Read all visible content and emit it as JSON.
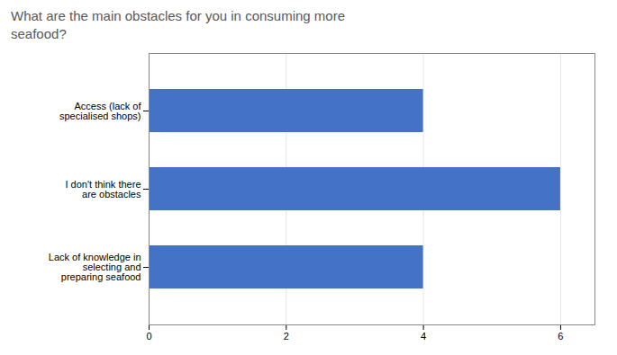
{
  "chart_data": {
    "type": "bar",
    "orientation": "horizontal",
    "title": "What are the main obstacles for you in consuming more\nseafood?",
    "categories": [
      "Lack of knowledge in\nselecting and\npreparing seafood",
      "I don't think there\nare obstacles",
      "Access (lack of\nspecialised shops)"
    ],
    "values": [
      4,
      6,
      4
    ],
    "color": "#4472C4",
    "xlim": [
      0,
      6.5
    ],
    "xticks": [
      0,
      2,
      4,
      6
    ],
    "grid": true
  }
}
